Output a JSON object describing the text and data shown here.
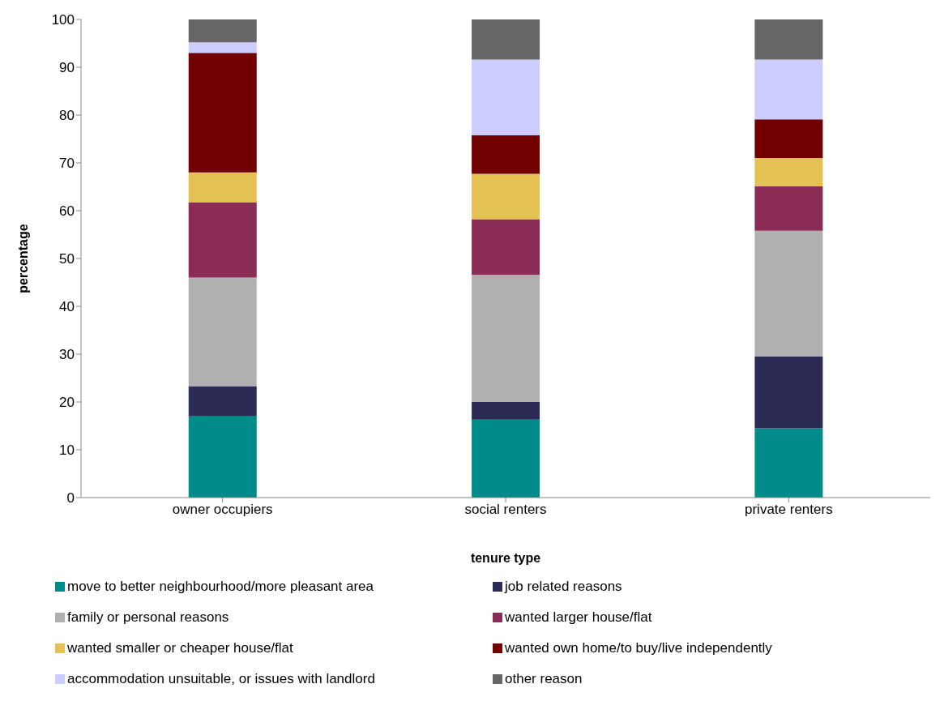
{
  "chart_data": {
    "type": "bar",
    "stacked": true,
    "xlabel": "tenure type",
    "ylabel": "percentage",
    "categories": [
      "owner occupiers",
      "social renters",
      "private renters"
    ],
    "series": [
      {
        "name": "move to better neighbourhood/more pleasant area",
        "color": "#008b8b",
        "values": [
          17,
          16.3,
          14.5
        ]
      },
      {
        "name": "job related reasons",
        "color": "#2b2b55",
        "values": [
          6.3,
          3.7,
          15
        ]
      },
      {
        "name": "family or personal reasons",
        "color": "#b0b0b0",
        "values": [
          22.7,
          26.6,
          26.3
        ]
      },
      {
        "name": "wanted larger house/flat",
        "color": "#8b2c57",
        "values": [
          15.8,
          11.6,
          9.3
        ]
      },
      {
        "name": "wanted smaller or cheaper house/flat",
        "color": "#e3c152",
        "values": [
          6.2,
          9.5,
          5.9
        ]
      },
      {
        "name": "wanted own home/to buy/live independently",
        "color": "#720000",
        "values": [
          25,
          8.1,
          8.1
        ]
      },
      {
        "name": "accommodation unsuitable, or issues with landlord",
        "color": "#ccccff",
        "values": [
          2.2,
          15.8,
          12.5
        ]
      },
      {
        "name": "other reason",
        "color": "#666666",
        "values": [
          4.8,
          8.4,
          8.4
        ]
      }
    ],
    "ylim": [
      0,
      100
    ],
    "yticks": [
      0,
      10,
      20,
      30,
      40,
      50,
      60,
      70,
      80,
      90,
      100
    ],
    "grid": false,
    "legend": "bottom"
  }
}
